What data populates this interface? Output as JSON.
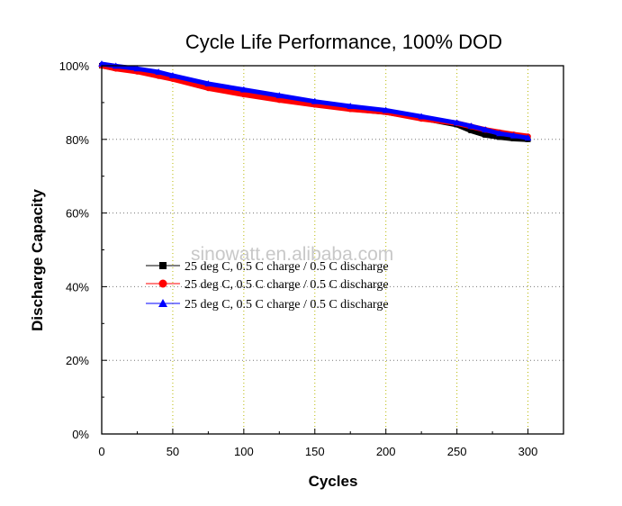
{
  "chart_data": {
    "type": "line",
    "title": "Cycle Life Performance, 100% DOD",
    "xlabel": "Cycles",
    "ylabel": "Discharge Capacity",
    "xlim": [
      0,
      325
    ],
    "ylim": [
      0,
      100
    ],
    "x_ticks": [
      0,
      50,
      100,
      150,
      200,
      250,
      300
    ],
    "x_tick_labels": [
      "0",
      "50",
      "100",
      "150",
      "200",
      "250",
      "300"
    ],
    "y_ticks": [
      0,
      20,
      40,
      60,
      80,
      100
    ],
    "y_tick_labels": [
      "0%",
      "20%",
      "40%",
      "60%",
      "80%",
      "100%"
    ],
    "grid": "dotted",
    "legend_position": "center-left",
    "watermark": "sinowatt.en.alibaba.com",
    "x": [
      0,
      10,
      25,
      40,
      50,
      75,
      100,
      125,
      150,
      175,
      200,
      225,
      250,
      260,
      270,
      280,
      290,
      300
    ],
    "series": [
      {
        "name": "25 deg C, 0.5 C charge / 0.5 C discharge",
        "color": "#000000",
        "marker": "square",
        "values": [
          100,
          99.3,
          98.6,
          97.6,
          96.8,
          94.4,
          92.6,
          91.0,
          89.6,
          88.3,
          87.4,
          85.8,
          84.0,
          82.4,
          81.2,
          80.6,
          80.2,
          80.0
        ]
      },
      {
        "name": "25 deg C, 0.5 C charge / 0.5 C discharge",
        "color": "#ff0000",
        "marker": "circle",
        "values": [
          100,
          99.2,
          98.4,
          97.2,
          96.4,
          93.9,
          92.2,
          90.7,
          89.4,
          88.2,
          87.4,
          85.6,
          84.4,
          83.5,
          82.6,
          81.9,
          81.3,
          80.8
        ]
      },
      {
        "name": "25 deg C, 0.5 C charge / 0.5 C discharge",
        "color": "#0000ff",
        "marker": "triangle",
        "values": [
          100.5,
          99.9,
          99.2,
          98.3,
          97.3,
          95.1,
          93.5,
          91.9,
          90.3,
          89.0,
          87.9,
          86.2,
          84.5,
          83.6,
          82.6,
          81.6,
          81.0,
          80.4
        ]
      }
    ]
  }
}
